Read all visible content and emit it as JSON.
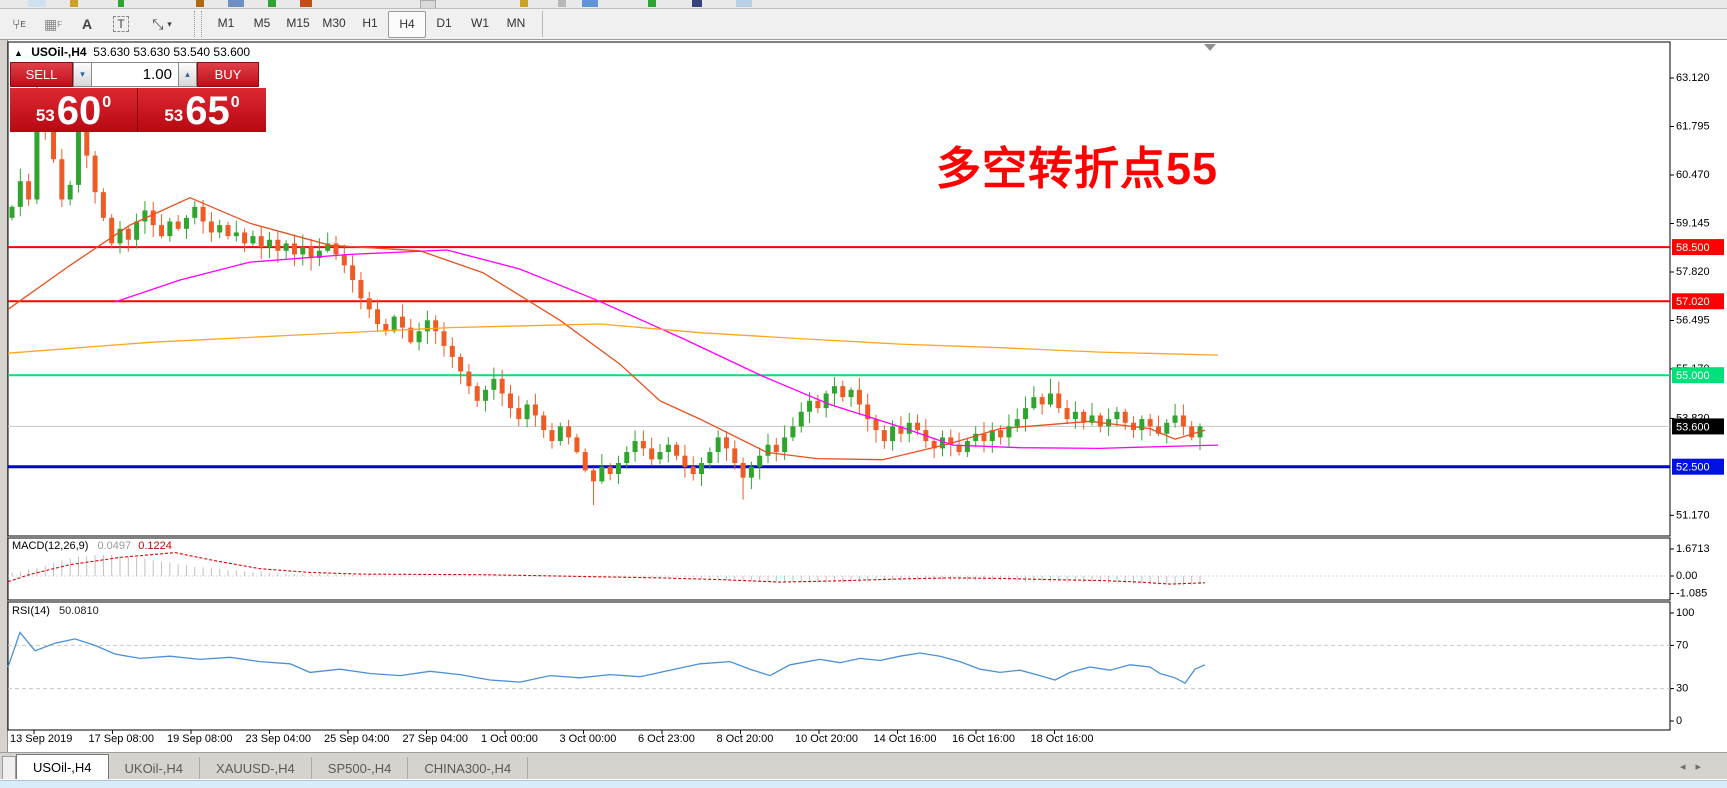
{
  "toolbar": {
    "icons": [
      {
        "name": "crosshair-indicator-icon",
        "glyph": "⑂"
      },
      {
        "name": "grid-icon",
        "glyph": "▦"
      },
      {
        "name": "text-label-icon",
        "glyph": "A"
      },
      {
        "name": "text-box-icon",
        "glyph": "T"
      },
      {
        "name": "cursor-tools-icon",
        "glyph": "⤡ ▾"
      }
    ],
    "timeframes": [
      "M1",
      "M5",
      "M15",
      "M30",
      "H1",
      "H4",
      "D1",
      "W1",
      "MN"
    ],
    "active_timeframe": "H4"
  },
  "chart_header": {
    "symbol": "USOil-,H4",
    "ohlc": "53.630 53.630 53.540 53.600"
  },
  "trade_panel": {
    "sell_label": "SELL",
    "buy_label": "BUY",
    "volume": "1.00",
    "spin_down": "▾",
    "spin_up": "▴",
    "sell_price_small": "53",
    "sell_price_big": "60",
    "sell_price_sup": "0",
    "buy_price_small": "53",
    "buy_price_big": "65",
    "buy_price_sup": "0"
  },
  "annotation": {
    "text": "多空转折点55",
    "color": "#ff0000"
  },
  "indicators": {
    "macd_label": "MACD(12,26,9)",
    "macd_value_main": "0.0497",
    "macd_value_signal": "0.1224",
    "rsi_label": "RSI(14)",
    "rsi_value": "50.0810"
  },
  "axes": {
    "price_ticks": [
      63.12,
      61.795,
      60.47,
      59.145,
      57.82,
      56.495,
      55.17,
      53.82,
      51.17
    ],
    "macd_ticks": [
      {
        "text": "1.6713",
        "v": 1.6713
      },
      {
        "text": "0.00",
        "v": 0.0
      },
      {
        "text": "-1.085",
        "v": -1.085
      }
    ],
    "rsi_ticks": [
      {
        "text": "100",
        "v": 100
      },
      {
        "text": "70",
        "v": 70
      },
      {
        "text": "30",
        "v": 30
      },
      {
        "text": "0",
        "v": 0
      }
    ],
    "dates": [
      "13 Sep 2019",
      "17 Sep 08:00",
      "19 Sep 08:00",
      "23 Sep 04:00",
      "25 Sep 04:00",
      "27 Sep 04:00",
      "1 Oct 00:00",
      "3 Oct 00:00",
      "6 Oct 23:00",
      "8 Oct 20:00",
      "10 Oct 20:00",
      "14 Oct 16:00",
      "16 Oct 16:00",
      "18 Oct 16:00"
    ]
  },
  "chart_data": {
    "type": "candlestick",
    "symbol": "USOil-,H4",
    "ylim": [
      50.6,
      64.1
    ],
    "hlines": [
      {
        "price": 58.5,
        "label": "58.500",
        "color": "#ff0000",
        "width": 2,
        "label_bg": "#ff0000"
      },
      {
        "price": 57.02,
        "label": "57.020",
        "color": "#ff0000",
        "width": 2,
        "label_bg": "#ff0000"
      },
      {
        "price": 55.0,
        "label": "55.000",
        "color": "#00e07a",
        "width": 2,
        "label_bg": "#00e07a"
      },
      {
        "price": 53.6,
        "label": "53.600",
        "color": "#c8c8c8",
        "width": 1,
        "label_bg": "#000000"
      },
      {
        "price": 52.5,
        "label": "52.500",
        "color": "#0008c8",
        "width": 3,
        "label_bg": "#0010e0"
      }
    ],
    "candles_close": [
      59.6,
      60.3,
      59.8,
      62.4,
      61.7,
      60.9,
      59.8,
      60.2,
      61.9,
      61.0,
      60.0,
      59.3,
      58.6,
      59.0,
      58.7,
      59.2,
      59.5,
      59.1,
      58.8,
      59.2,
      59.0,
      59.3,
      59.6,
      59.2,
      58.9,
      59.1,
      58.8,
      58.9,
      58.6,
      58.8,
      58.5,
      58.7,
      58.4,
      58.6,
      58.3,
      58.5,
      58.2,
      58.4,
      58.6,
      58.3,
      58.0,
      57.6,
      57.1,
      56.8,
      56.4,
      56.2,
      56.6,
      56.3,
      55.9,
      56.2,
      56.5,
      56.2,
      55.8,
      55.5,
      55.1,
      54.7,
      54.3,
      54.6,
      54.9,
      54.5,
      54.1,
      53.8,
      54.2,
      53.9,
      53.5,
      53.2,
      53.6,
      53.3,
      52.9,
      52.4,
      52.1,
      52.5,
      52.3,
      52.6,
      52.9,
      53.2,
      53.0,
      52.7,
      52.9,
      53.1,
      52.8,
      52.5,
      52.3,
      52.6,
      52.9,
      53.3,
      53.0,
      52.6,
      52.2,
      52.5,
      52.8,
      53.1,
      52.9,
      53.3,
      53.6,
      54.0,
      54.3,
      54.1,
      54.5,
      54.7,
      54.4,
      54.6,
      54.2,
      53.8,
      53.5,
      53.2,
      53.6,
      53.4,
      53.7,
      53.5,
      53.2,
      53.0,
      53.3,
      53.1,
      52.9,
      53.2,
      53.4,
      53.2,
      53.5,
      53.3,
      53.6,
      53.8,
      54.1,
      54.4,
      54.2,
      54.5,
      54.1,
      53.8,
      54.0,
      53.7,
      53.9,
      53.6,
      53.8,
      54.0,
      53.7,
      53.5,
      53.8,
      53.6,
      53.4,
      53.7,
      53.9,
      53.6,
      53.3,
      53.6
    ],
    "first_open": 59.3,
    "wick_overrides": {
      "3": {
        "h": 63.05
      },
      "8": {
        "h": 62.55
      },
      "70": {
        "l": 51.45
      },
      "88": {
        "l": 51.6
      },
      "99": {
        "h": 54.95
      },
      "125": {
        "h": 54.9
      }
    },
    "bull_color": "#2fa52f",
    "bear_color": "#ef5b25",
    "moving_averages": [
      {
        "name": "ma-fast",
        "color": "#e8501e",
        "points": [
          [
            8,
            56.8
          ],
          [
            70,
            58.0
          ],
          [
            130,
            59.1
          ],
          [
            190,
            59.85
          ],
          [
            250,
            59.15
          ],
          [
            330,
            58.55
          ],
          [
            420,
            58.4
          ],
          [
            483,
            57.8
          ],
          [
            560,
            56.5
          ],
          [
            620,
            55.3
          ],
          [
            660,
            54.3
          ],
          [
            700,
            53.8
          ],
          [
            767,
            52.89
          ],
          [
            817,
            52.72
          ],
          [
            883,
            52.69
          ],
          [
            950,
            53.13
          ],
          [
            1000,
            53.54
          ],
          [
            1090,
            53.74
          ],
          [
            1150,
            53.54
          ],
          [
            1175,
            53.25
          ],
          [
            1205,
            53.5
          ]
        ]
      },
      {
        "name": "ma-mid",
        "color": "#ff00ff",
        "points": [
          [
            115,
            57.0
          ],
          [
            180,
            57.6
          ],
          [
            250,
            58.09
          ],
          [
            350,
            58.3
          ],
          [
            447,
            58.42
          ],
          [
            520,
            57.9
          ],
          [
            597,
            57.05
          ],
          [
            683,
            56.0
          ],
          [
            762,
            54.98
          ],
          [
            830,
            54.2
          ],
          [
            900,
            53.59
          ],
          [
            953,
            53.09
          ],
          [
            1020,
            53.02
          ],
          [
            1100,
            53.0
          ],
          [
            1160,
            53.05
          ],
          [
            1218,
            53.09
          ]
        ]
      },
      {
        "name": "ma-slow",
        "color": "#ffa520",
        "points": [
          [
            8,
            55.6
          ],
          [
            150,
            55.9
          ],
          [
            300,
            56.1
          ],
          [
            450,
            56.3
          ],
          [
            600,
            56.4
          ],
          [
            700,
            56.16
          ],
          [
            800,
            56.0
          ],
          [
            900,
            55.85
          ],
          [
            1000,
            55.75
          ],
          [
            1100,
            55.63
          ],
          [
            1218,
            55.55
          ]
        ]
      }
    ],
    "macd": {
      "hist_color": "#c0c0c0",
      "signal_color": "#e00000",
      "signal": [
        [
          8,
          -0.35
        ],
        [
          30,
          0.1
        ],
        [
          70,
          0.7
        ],
        [
          120,
          1.15
        ],
        [
          175,
          1.45
        ],
        [
          215,
          0.95
        ],
        [
          260,
          0.45
        ],
        [
          310,
          0.22
        ],
        [
          360,
          0.12
        ],
        [
          420,
          0.1
        ],
        [
          480,
          0.08
        ],
        [
          540,
          0.02
        ],
        [
          600,
          -0.05
        ],
        [
          660,
          -0.12
        ],
        [
          720,
          -0.22
        ],
        [
          780,
          -0.38
        ],
        [
          840,
          -0.3
        ],
        [
          900,
          -0.18
        ],
        [
          950,
          -0.12
        ],
        [
          1000,
          -0.15
        ],
        [
          1050,
          -0.22
        ],
        [
          1100,
          -0.28
        ],
        [
          1140,
          -0.38
        ],
        [
          1170,
          -0.5
        ],
        [
          1205,
          -0.42
        ]
      ],
      "hist": [
        [
          8,
          0.15
        ],
        [
          40,
          0.55
        ],
        [
          70,
          1.1
        ],
        [
          100,
          1.35
        ],
        [
          130,
          1.2
        ],
        [
          160,
          0.9
        ],
        [
          200,
          0.55
        ],
        [
          240,
          0.3
        ],
        [
          280,
          0.18
        ],
        [
          330,
          0.08
        ],
        [
          380,
          0.04
        ],
        [
          450,
          0.02
        ],
        [
          550,
          0.0
        ],
        [
          650,
          -0.05
        ],
        [
          720,
          -0.15
        ],
        [
          760,
          -0.3
        ],
        [
          800,
          -0.42
        ],
        [
          850,
          -0.38
        ],
        [
          900,
          -0.3
        ],
        [
          950,
          -0.28
        ],
        [
          1000,
          -0.3
        ],
        [
          1050,
          -0.35
        ],
        [
          1100,
          -0.4
        ],
        [
          1150,
          -0.5
        ],
        [
          1180,
          -0.58
        ],
        [
          1205,
          -0.5
        ]
      ]
    },
    "rsi": {
      "color": "#4a90d9",
      "levels": [
        70,
        30
      ],
      "points": [
        [
          8,
          50
        ],
        [
          20,
          82
        ],
        [
          35,
          65
        ],
        [
          55,
          72
        ],
        [
          75,
          76
        ],
        [
          95,
          70
        ],
        [
          115,
          62
        ],
        [
          140,
          58
        ],
        [
          170,
          60
        ],
        [
          200,
          57
        ],
        [
          230,
          59
        ],
        [
          260,
          55
        ],
        [
          290,
          53
        ],
        [
          310,
          45
        ],
        [
          340,
          48
        ],
        [
          370,
          44
        ],
        [
          400,
          42
        ],
        [
          430,
          46
        ],
        [
          460,
          43
        ],
        [
          490,
          38
        ],
        [
          520,
          36
        ],
        [
          550,
          42
        ],
        [
          580,
          40
        ],
        [
          610,
          43
        ],
        [
          640,
          41
        ],
        [
          670,
          47
        ],
        [
          700,
          53
        ],
        [
          730,
          55
        ],
        [
          750,
          48
        ],
        [
          770,
          42
        ],
        [
          790,
          52
        ],
        [
          820,
          57
        ],
        [
          840,
          54
        ],
        [
          860,
          58
        ],
        [
          880,
          56
        ],
        [
          900,
          60
        ],
        [
          920,
          63
        ],
        [
          940,
          60
        ],
        [
          960,
          55
        ],
        [
          980,
          48
        ],
        [
          1000,
          45
        ],
        [
          1020,
          47
        ],
        [
          1040,
          42
        ],
        [
          1055,
          38
        ],
        [
          1070,
          45
        ],
        [
          1090,
          50
        ],
        [
          1110,
          47
        ],
        [
          1130,
          52
        ],
        [
          1150,
          50
        ],
        [
          1160,
          44
        ],
        [
          1175,
          40
        ],
        [
          1185,
          35
        ],
        [
          1195,
          48
        ],
        [
          1205,
          52
        ]
      ]
    }
  },
  "tabs": {
    "items": [
      "USOil-,H4",
      "UKOil-,H4",
      "XAUUSD-,H4",
      "SP500-,H4",
      "CHINA300-,H4"
    ],
    "active": "USOil-,H4"
  },
  "scrollbar": {
    "left_arrow": "◂",
    "right_arrow": "▸"
  },
  "colors": {
    "hline_red": "#ff0000",
    "hline_green": "#00e07a",
    "hline_blue": "#0008c8",
    "current_price_line": "#c8c8c8",
    "annotation_red": "#ff0000",
    "buy_sell_red": "#c00d18",
    "rsi_blue": "#4a90d9"
  }
}
